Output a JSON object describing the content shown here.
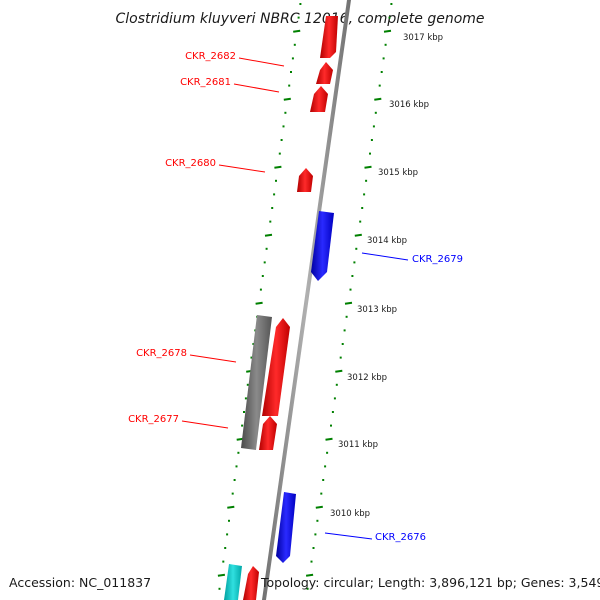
{
  "title": "Clostridium kluyveri NBRC 12016, complete genome",
  "footer": {
    "accession": "Accession: NC_011837",
    "summary": "Topology: circular; Length: 3,896,121 bp; Genes: 3,549"
  },
  "colors": {
    "forward_gene": "#ff0000",
    "reverse_gene": "#0000ff",
    "rna_gene": "#00c8c8",
    "other_feature": "#6e6e6e",
    "backbone": "#8c8c8c",
    "ticks": "#008000"
  },
  "scale_labels": [
    "3017 kbp",
    "3016 kbp",
    "3015 kbp",
    "3014 kbp",
    "3013 kbp",
    "3012 kbp",
    "3011 kbp",
    "3010 kbp"
  ],
  "gene_labels": [
    {
      "text": "CKR_2682",
      "strand": "forward"
    },
    {
      "text": "CKR_2681",
      "strand": "forward"
    },
    {
      "text": "CKR_2680",
      "strand": "forward"
    },
    {
      "text": "CKR_2679",
      "strand": "reverse"
    },
    {
      "text": "CKR_2678",
      "strand": "forward"
    },
    {
      "text": "CKR_2677",
      "strand": "forward"
    },
    {
      "text": "CKR_2676",
      "strand": "reverse"
    }
  ]
}
